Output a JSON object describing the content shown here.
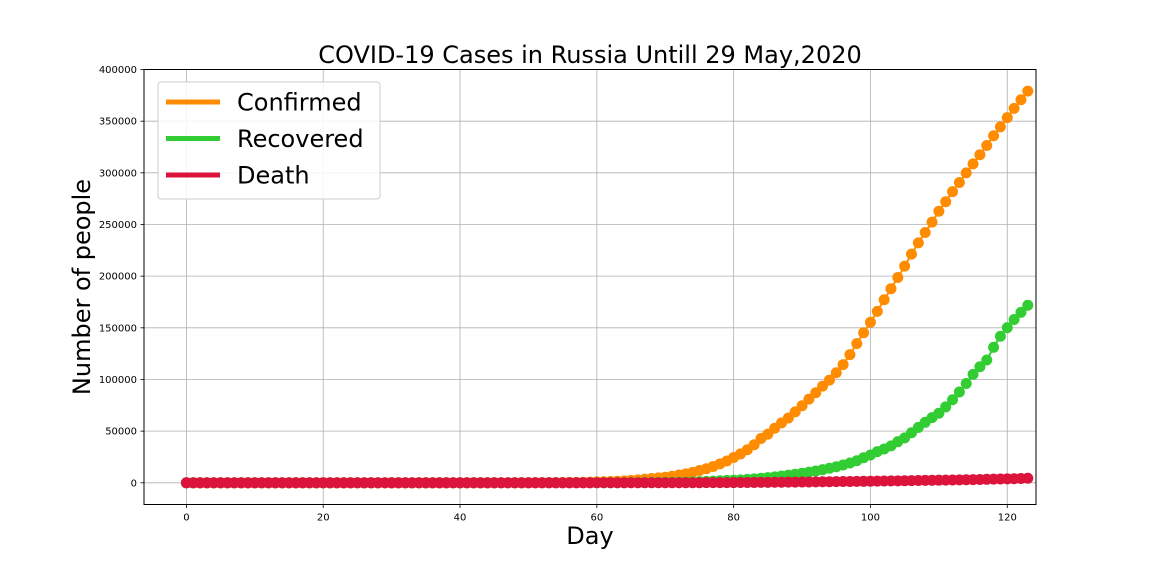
{
  "chart_data": {
    "type": "line",
    "title": "COVID-19 Cases in Russia Untill 29 May,2020",
    "xlabel": "Day",
    "ylabel": "Number of people",
    "xlim": [
      -6.2,
      124.2
    ],
    "ylim": [
      -21000,
      400000
    ],
    "xticks": [
      0,
      20,
      40,
      60,
      80,
      100,
      120
    ],
    "yticks": [
      0,
      50000,
      100000,
      150000,
      200000,
      250000,
      300000,
      350000,
      400000
    ],
    "grid": true,
    "legend_position": "top-left",
    "x_start": 0,
    "series": [
      {
        "name": "Confirmed",
        "color": "#ff8c00",
        "values": [
          0,
          0,
          0,
          0,
          0,
          0,
          0,
          0,
          0,
          0,
          0,
          0,
          0,
          0,
          0,
          0,
          0,
          0,
          0,
          0,
          0,
          0,
          0,
          0,
          0,
          0,
          0,
          0,
          0,
          0,
          0,
          2,
          2,
          2,
          2,
          2,
          2,
          2,
          2,
          3,
          3,
          3,
          4,
          7,
          10,
          17,
          28,
          45,
          59,
          63,
          90,
          114,
          147,
          199,
          253,
          306,
          367,
          438,
          495,
          658,
          840,
          1036,
          1264,
          1534,
          1836,
          2337,
          2777,
          3548,
          4149,
          4731,
          5389,
          6343,
          7497,
          8672,
          10131,
          11917,
          13584,
          15770,
          18328,
          21102,
          24490,
          27938,
          32008,
          36793,
          42853,
          47121,
          52763,
          57999,
          62773,
          68622,
          74588,
          80949,
          87147,
          93558,
          99399,
          106498,
          114431,
          124054,
          134686,
          145268,
          155370,
          165929,
          177160,
          187859,
          198676,
          209688,
          221344,
          232243,
          242271,
          252245,
          262843,
          272043,
          281752,
          290678,
          299941,
          308705,
          317554,
          326448,
          335882,
          344481,
          353427,
          362342,
          370680,
          379051
        ]
      },
      {
        "name": "Recovered",
        "color": "#32cd32",
        "values": [
          0,
          0,
          0,
          0,
          0,
          0,
          0,
          0,
          0,
          0,
          0,
          0,
          0,
          0,
          0,
          0,
          0,
          0,
          0,
          0,
          0,
          0,
          0,
          0,
          0,
          0,
          0,
          0,
          0,
          0,
          0,
          0,
          0,
          0,
          0,
          0,
          0,
          0,
          0,
          0,
          0,
          0,
          0,
          0,
          0,
          0,
          0,
          2,
          2,
          3,
          5,
          5,
          8,
          9,
          9,
          9,
          16,
          17,
          29,
          49,
          61,
          64,
          81,
          88,
          108,
          141,
          190,
          233,
          308,
          356,
          401,
          494,
          585,
          708,
          868,
          1091,
          1351,
          1598,
          1990,
          2305,
          2576,
          2874,
          3291,
          3829,
          4426,
          5007,
          5769,
          6580,
          7399,
          8322,
          9274,
          10313,
          11470,
          12704,
          14056,
          15549,
          17218,
          19207,
          21320,
          24236,
          26919,
          30129,
          32738,
          35706,
          39803,
          43488,
          48456,
          53592,
          58551,
          63112,
          67373,
          73435,
          80342,
          87863,
          96143,
          104946,
          112356,
          118813,
          131130,
          141825,
          150135,
          158000,
          165000,
          171883
        ]
      },
      {
        "name": "Death",
        "color": "#dc143c",
        "values": [
          0,
          0,
          0,
          0,
          0,
          0,
          0,
          0,
          0,
          0,
          0,
          0,
          0,
          0,
          0,
          0,
          0,
          0,
          0,
          0,
          0,
          0,
          0,
          0,
          0,
          0,
          0,
          0,
          0,
          0,
          0,
          0,
          0,
          0,
          0,
          0,
          0,
          0,
          0,
          0,
          0,
          0,
          0,
          0,
          0,
          0,
          0,
          0,
          0,
          0,
          1,
          1,
          1,
          1,
          1,
          1,
          1,
          1,
          2,
          3,
          4,
          4,
          8,
          9,
          17,
          24,
          30,
          34,
          43,
          45,
          47,
          58,
          63,
          76,
          94,
          106,
          130,
          148,
          170,
          198,
          232,
          273,
          313,
          361,
          405,
          456,
          513,
          555,
          615,
          681,
          747,
          794,
          867,
          972,
          1073,
          1169,
          1222,
          1280,
          1356,
          1451,
          1537,
          1625,
          1723,
          1827,
          1915,
          2009,
          2116,
          2212,
          2305,
          2418,
          2537,
          2631,
          2722,
          2837,
          2972,
          3099,
          3249,
          3388,
          3541,
          3633,
          3807,
          3968,
          4142,
          4374
        ]
      }
    ]
  }
}
